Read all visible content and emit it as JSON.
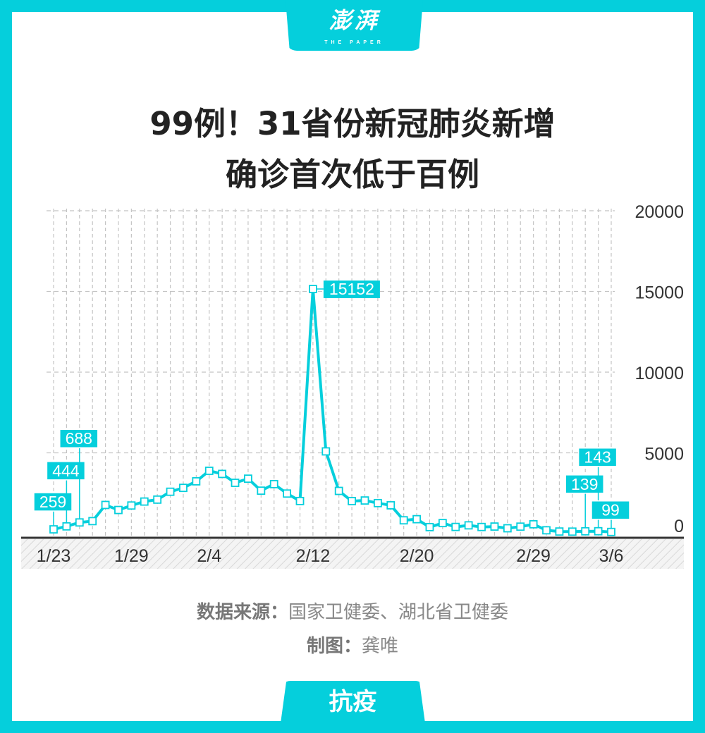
{
  "header": {
    "logo_text": "澎湃",
    "logo_sub": "THE PAPER"
  },
  "title_lines": [
    "99例！31省份新冠肺炎新增",
    "确诊首次低于百例"
  ],
  "footer": {
    "source_label": "数据来源：",
    "source_value": "国家卫健委、湖北省卫健委",
    "credit_label": "制图：",
    "credit_value": "龚唯",
    "tag": "抗疫"
  },
  "colors": {
    "accent": "#05cfdc",
    "axis": "#333333",
    "grid": "#bbbbbb"
  },
  "chart_data": {
    "type": "line",
    "x": [
      "1/23",
      "1/24",
      "1/25",
      "1/26",
      "1/27",
      "1/28",
      "1/29",
      "1/30",
      "1/31",
      "2/1",
      "2/2",
      "2/3",
      "2/4",
      "2/5",
      "2/6",
      "2/7",
      "2/8",
      "2/9",
      "2/10",
      "2/11",
      "2/12",
      "2/13",
      "2/14",
      "2/15",
      "2/16",
      "2/17",
      "2/18",
      "2/19",
      "2/20",
      "2/21",
      "2/22",
      "2/23",
      "2/24",
      "2/25",
      "2/26",
      "2/27",
      "2/28",
      "2/29",
      "3/1",
      "3/2",
      "3/3",
      "3/4",
      "3/5",
      "3/6"
    ],
    "values": [
      259,
      444,
      688,
      769,
      1771,
      1459,
      1737,
      1982,
      2102,
      2590,
      2829,
      3235,
      3887,
      3694,
      3143,
      3399,
      2656,
      3062,
      2478,
      2015,
      15152,
      5090,
      2641,
      2009,
      2048,
      1886,
      1749,
      820,
      889,
      397,
      648,
      409,
      508,
      406,
      433,
      327,
      427,
      573,
      202,
      125,
      119,
      139,
      143,
      99
    ],
    "x_ticks": [
      "1/23",
      "1/29",
      "2/4",
      "2/12",
      "2/20",
      "2/29",
      "3/6"
    ],
    "y_ticks": [
      "0",
      "5000",
      "10000",
      "15000",
      "20000"
    ],
    "ylim": [
      0,
      20000
    ],
    "grid": true,
    "y_axis_side": "right",
    "data_labels": [
      {
        "x": "1/23",
        "text": "259"
      },
      {
        "x": "1/24",
        "text": "444"
      },
      {
        "x": "1/25",
        "text": "688"
      },
      {
        "x": "2/12",
        "text": "15152"
      },
      {
        "x": "3/4",
        "text": "139"
      },
      {
        "x": "3/5",
        "text": "143"
      },
      {
        "x": "3/6",
        "text": "99"
      }
    ]
  }
}
